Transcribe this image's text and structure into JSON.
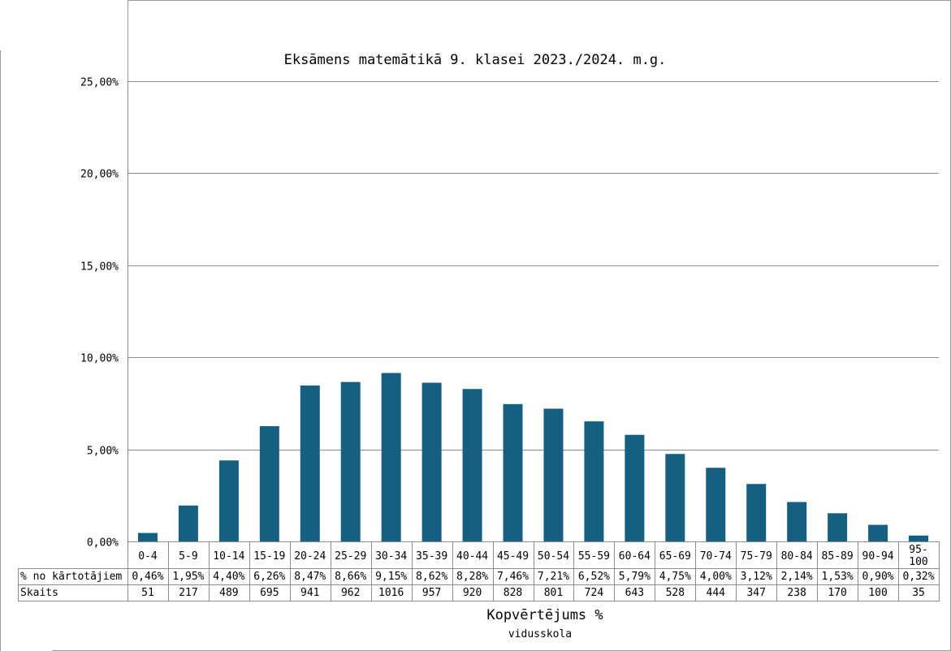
{
  "chart_data": {
    "type": "bar",
    "title": "Eksāmens matemātikā 9. klasei 2023./2024. m.g.",
    "xlabel": "Kopvērtējums %",
    "subtitle": "vidusskola",
    "ylim": [
      0,
      25
    ],
    "y_ticks": [
      {
        "value": 0,
        "label": "0,00%"
      },
      {
        "value": 5,
        "label": "5,00%"
      },
      {
        "value": 10,
        "label": "10,00%"
      },
      {
        "value": 15,
        "label": "15,00%"
      },
      {
        "value": 20,
        "label": "20,00%"
      },
      {
        "value": 25,
        "label": "25,00%"
      }
    ],
    "categories": [
      "0-4",
      "5-9",
      "10-14",
      "15-19",
      "20-24",
      "25-29",
      "30-34",
      "35-39",
      "40-44",
      "45-49",
      "50-54",
      "55-59",
      "60-64",
      "65-69",
      "70-74",
      "75-79",
      "80-84",
      "85-89",
      "90-94",
      "95-100"
    ],
    "category_display": [
      "0-4",
      "5-9",
      "10-14",
      "15-19",
      "20-24",
      "25-29",
      "30-34",
      "35-39",
      "40-44",
      "45-49",
      "50-54",
      "55-59",
      "60-64",
      "65-69",
      "70-74",
      "75-79",
      "80-84",
      "85-89",
      "90-94",
      "95-\n100"
    ],
    "values": [
      0.46,
      1.95,
      4.4,
      6.26,
      8.47,
      8.66,
      9.15,
      8.62,
      8.28,
      7.46,
      7.21,
      6.52,
      5.79,
      4.75,
      4.0,
      3.12,
      2.14,
      1.53,
      0.9,
      0.32
    ],
    "grid": true,
    "bar_color": "#156082",
    "table": {
      "rows": [
        {
          "label": "% no kārtotājiem",
          "cells": [
            "0,46%",
            "1,95%",
            "4,40%",
            "6,26%",
            "8,47%",
            "8,66%",
            "9,15%",
            "8,62%",
            "8,28%",
            "7,46%",
            "7,21%",
            "6,52%",
            "5,79%",
            "4,75%",
            "4,00%",
            "3,12%",
            "2,14%",
            "1,53%",
            "0,90%",
            "0,32%"
          ]
        },
        {
          "label": "Skaits",
          "cells": [
            "51",
            "217",
            "489",
            "695",
            "941",
            "962",
            "1016",
            "957",
            "920",
            "828",
            "801",
            "724",
            "643",
            "528",
            "444",
            "347",
            "238",
            "170",
            "100",
            "35"
          ]
        }
      ]
    }
  }
}
